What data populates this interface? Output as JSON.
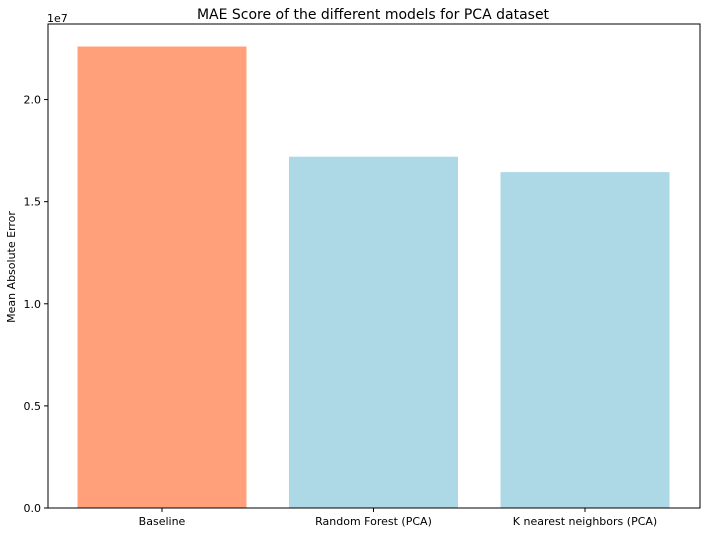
{
  "chart_data": {
    "type": "bar",
    "title": "MAE Score of the different models for PCA dataset",
    "xlabel": "",
    "ylabel": "Mean Absolute Error",
    "y_scale_label": "1e7",
    "categories": [
      "Baseline",
      "Random Forest (PCA)",
      "K nearest neighbors (PCA)"
    ],
    "values": [
      22600000,
      17200000,
      16450000
    ],
    "bar_colors": [
      "#FFA07A",
      "#ADD8E6",
      "#ADD8E6"
    ],
    "ylim": [
      0,
      23700000
    ],
    "y_ticks": [
      {
        "value": 0,
        "label": "0.0"
      },
      {
        "value": 5000000,
        "label": "0.5"
      },
      {
        "value": 10000000,
        "label": "1.0"
      },
      {
        "value": 15000000,
        "label": "1.5"
      },
      {
        "value": 20000000,
        "label": "2.0"
      }
    ],
    "grid": false,
    "legend": "none"
  }
}
